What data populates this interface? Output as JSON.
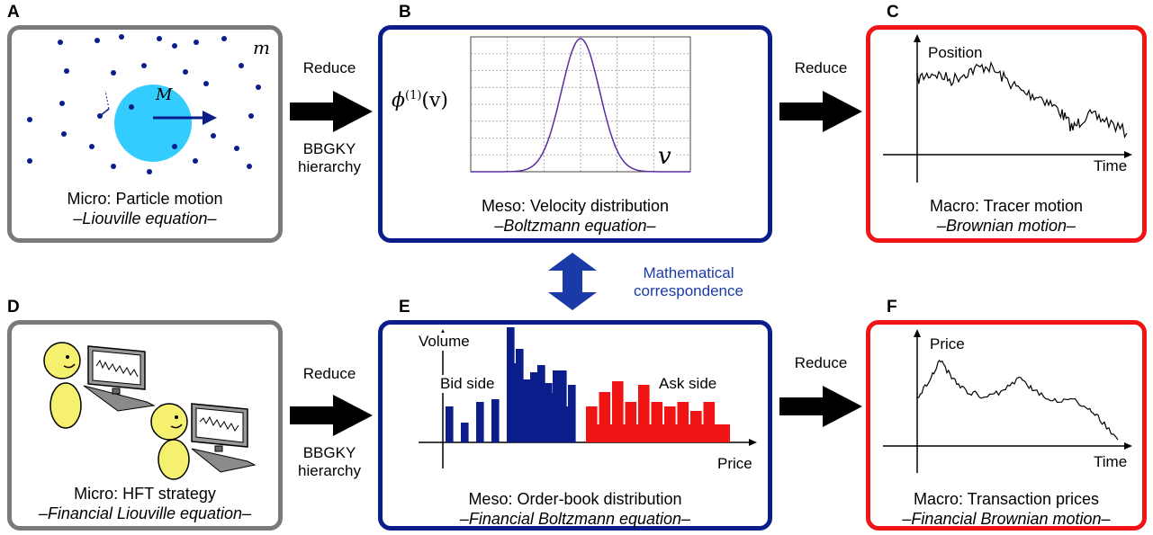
{
  "panels": {
    "A": {
      "label": "A",
      "caption": "Micro: Particle motion",
      "subcaption": "–Liouville equation–",
      "m": "m",
      "M": "M"
    },
    "B": {
      "label": "B",
      "caption": "Meso: Velocity distribution",
      "subcaption": "–Boltzmann equation–",
      "y_var": "ϕ",
      "y_sup": "(1)",
      "y_arg": "(v)",
      "x_var": "v"
    },
    "C": {
      "label": "C",
      "caption": "Macro: Tracer motion",
      "subcaption": "–Brownian motion–",
      "ylabel": "Position",
      "xlabel": "Time"
    },
    "D": {
      "label": "D",
      "caption": "Micro: HFT strategy",
      "subcaption": "–Financial Liouville equation–"
    },
    "E": {
      "label": "E",
      "caption": "Meso: Order-book distribution",
      "subcaption": "–Financial Boltzmann equation–",
      "ylabel": "Volume",
      "xlabel": "Price",
      "bid_label": "Bid side",
      "ask_label": "Ask side"
    },
    "F": {
      "label": "F",
      "caption": "Macro: Transaction prices",
      "subcaption": "–Financial Brownian motion–",
      "ylabel": "Price",
      "xlabel": "Time"
    }
  },
  "arrows": {
    "reduce": "Reduce",
    "bbgky_line1": "BBGKY",
    "bbgky_line2": "hierarchy"
  },
  "correspondence": {
    "line1": "Mathematical",
    "line2": "correspondence"
  },
  "colors": {
    "gray_border": "#7a7a7a",
    "blue_border": "#0b1d8a",
    "red_border": "#f01414",
    "particle": "#0b1d8a",
    "tracer": "#33ccff",
    "bid": "#0b1d8a",
    "ask": "#f01414",
    "person": "#f5f06e",
    "accent_text": "#1a3aa8"
  },
  "orderbook": {
    "bid_heights": [
      40,
      22,
      45,
      48,
      128,
      70,
      86,
      80,
      64
    ],
    "ask_heights": [
      40,
      56,
      68,
      45,
      64,
      45,
      40,
      45,
      35,
      45,
      20
    ]
  }
}
